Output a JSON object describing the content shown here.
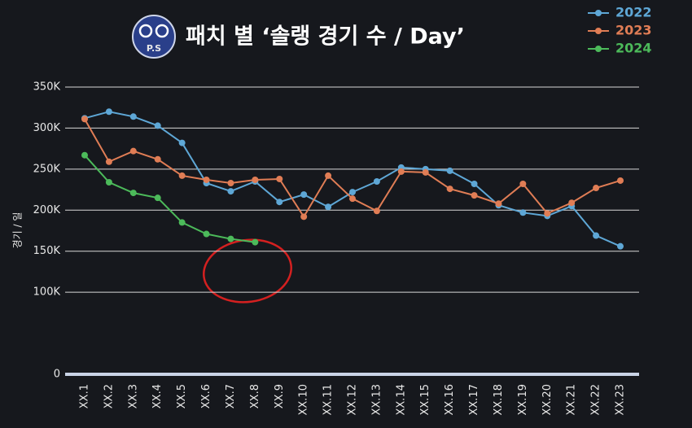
{
  "logo": "P.S",
  "chart_data": {
    "type": "line",
    "title": "패치 별 ‘솔랭 경기 수 / Day’",
    "y_label": "경기 / 일",
    "categories": [
      "XX.1",
      "XX.2",
      "XX.3",
      "XX.4",
      "XX.5",
      "XX.6",
      "XX.7",
      "XX.8",
      "XX.9",
      "XX.10",
      "XX.11",
      "XX.12",
      "XX.13",
      "XX.14",
      "XX.15",
      "XX.16",
      "XX.17",
      "XX.18",
      "XX.19",
      "XX.20",
      "XX.21",
      "XX.22",
      "XX.23"
    ],
    "series": [
      {
        "name": "2022",
        "color": "#5ea7d6",
        "values": [
          312000,
          320000,
          314000,
          303000,
          282000,
          233000,
          223000,
          235000,
          210000,
          219000,
          204000,
          222000,
          235000,
          252000,
          250000,
          248000,
          232000,
          206000,
          197000,
          193000,
          205000,
          169000,
          156000
        ]
      },
      {
        "name": "2023",
        "color": "#e07d55",
        "values": [
          311000,
          259000,
          272000,
          262000,
          242000,
          237000,
          233000,
          237000,
          238000,
          192000,
          242000,
          214000,
          199000,
          247000,
          246000,
          226000,
          218000,
          208000,
          232000,
          196000,
          209000,
          227000,
          236000
        ]
      },
      {
        "name": "2024",
        "color": "#4cba5a",
        "values": [
          267000,
          234000,
          221000,
          215000,
          185000,
          171000,
          165000,
          161000,
          null,
          null,
          null,
          null,
          null,
          null,
          null,
          null,
          null,
          null,
          null,
          null,
          null,
          null,
          null
        ]
      }
    ],
    "ylim": [
      0,
      350000
    ],
    "yticks": [
      0,
      {
        "value": 100000,
        "label": "100K"
      },
      {
        "value": 150000,
        "label": "150K"
      },
      {
        "value": 200000,
        "label": "200K"
      },
      {
        "value": 250000,
        "label": "250K"
      },
      {
        "value": 300000,
        "label": "300K"
      },
      {
        "value": 350000,
        "label": "350K"
      }
    ],
    "grid": true,
    "legend": "top-right"
  }
}
